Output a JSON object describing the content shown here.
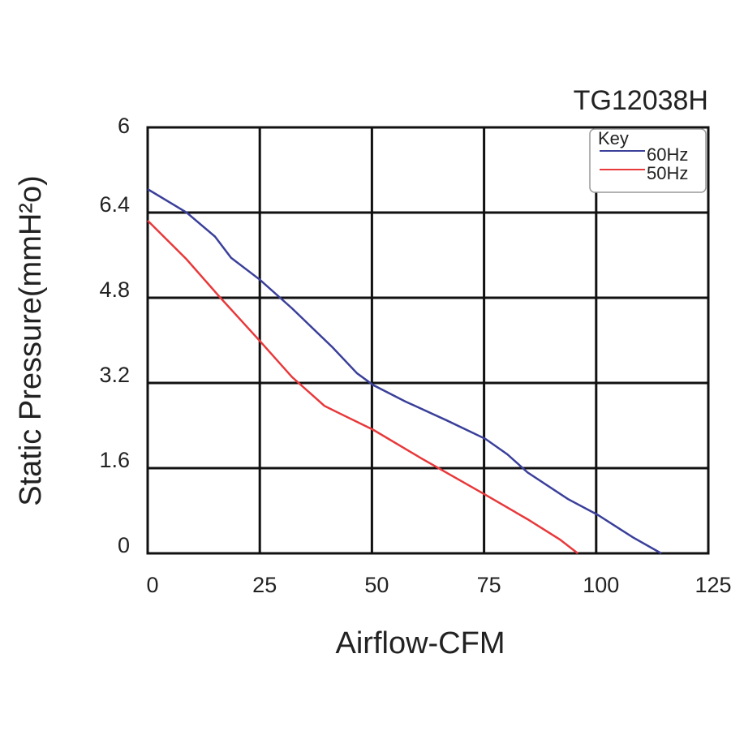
{
  "chart_data": {
    "type": "line",
    "title": "TG12038H",
    "x_label": "Airflow-CFM",
    "y_label": "Static Pressure(mmH²o)",
    "legend_title": "Key",
    "legend_position": "upper right",
    "grid": true,
    "xlim": [
      0,
      125
    ],
    "xticks": [
      0,
      25,
      50,
      75,
      100,
      125
    ],
    "ylim": [
      0,
      8
    ],
    "ylim_label": "6",
    "yticks": [
      0,
      1.6,
      3.2,
      4.8,
      6.4
    ],
    "series": [
      {
        "name": "60Hz",
        "color": "#3a3f9a",
        "x": [
          0,
          8.7,
          15,
          18.6,
          25,
          32.2,
          41.2,
          46.7,
          50.3,
          57.5,
          66.6,
          75.3,
          80.2,
          84.7,
          93.7,
          100.4,
          108.2,
          114.5
        ],
        "values": [
          6.84,
          6.4,
          5.95,
          5.55,
          5.14,
          4.6,
          3.87,
          3.38,
          3.16,
          2.85,
          2.5,
          2.15,
          1.86,
          1.52,
          1.02,
          0.72,
          0.3,
          0
        ]
      },
      {
        "name": "50Hz",
        "color": "#e8383a",
        "x": [
          0,
          8.7,
          15.9,
          25,
          32.2,
          39.4,
          43,
          50.3,
          61.1,
          75.3,
          84.7,
          91.9,
          95.9
        ],
        "values": [
          6.25,
          5.52,
          4.83,
          3.99,
          3.31,
          2.77,
          2.62,
          2.32,
          1.78,
          1.1,
          0.64,
          0.26,
          0
        ]
      }
    ]
  }
}
